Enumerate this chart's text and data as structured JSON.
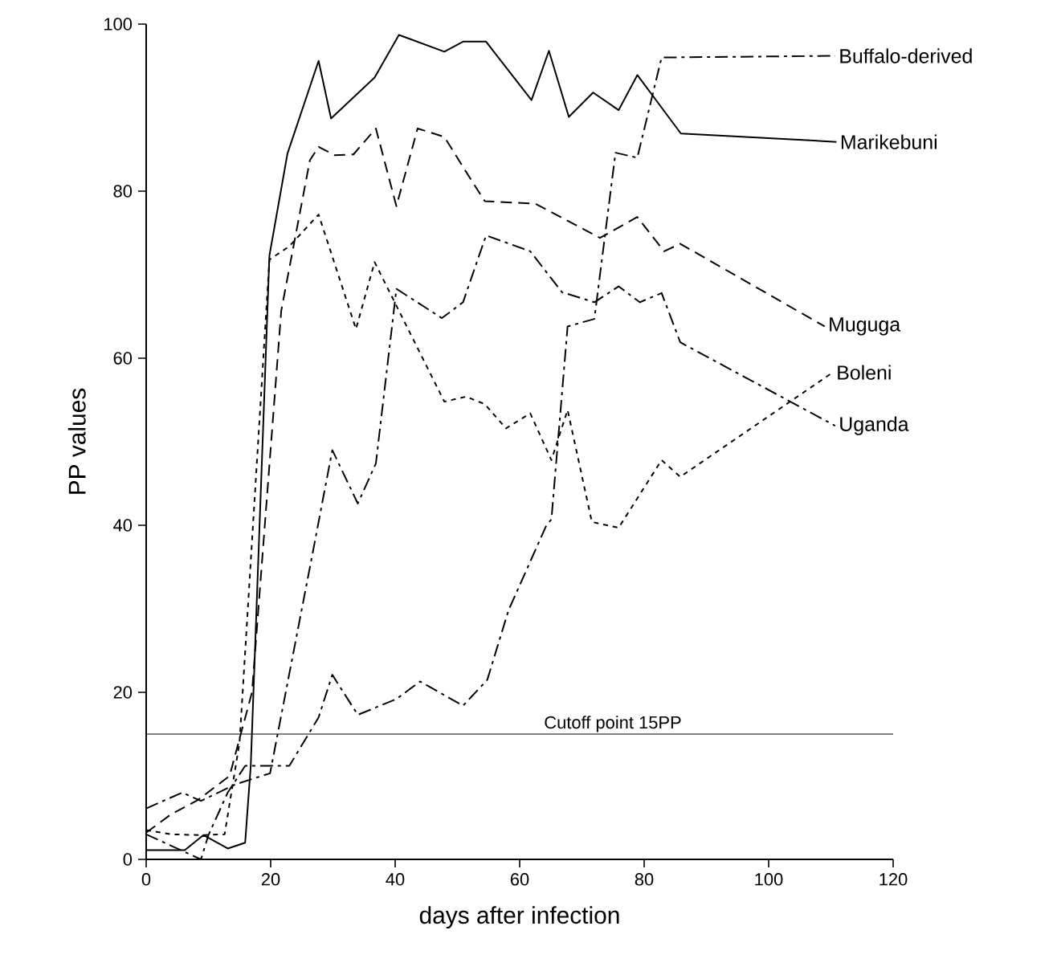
{
  "chart_data": {
    "type": "line",
    "xlabel": "days after infection",
    "ylabel": "PP values",
    "xlim": [
      0,
      120
    ],
    "ylim": [
      0,
      100
    ],
    "xticks": [
      0,
      20,
      40,
      60,
      80,
      100,
      120
    ],
    "yticks": [
      0,
      20,
      40,
      60,
      80,
      100
    ],
    "grid": false,
    "marker": "none",
    "ref_lines": [
      {
        "axis": "y",
        "value": 15,
        "label": "Cutoff point  15PP"
      }
    ],
    "series": [
      {
        "name": "Buffalo-derived",
        "color": "#000000",
        "line_style": "dashdot",
        "x": [
          0,
          8.8,
          10,
          13.1,
          15.9,
          23,
          27.7,
          29.9,
          34,
          40.2,
          44,
          50.9,
          54.8,
          58.2,
          64.3,
          65.1,
          67.7,
          72,
          75.4,
          78.9,
          82.8,
          110.7
        ],
        "values": [
          3,
          0,
          2.9,
          8,
          11.2,
          11.2,
          17,
          22.1,
          17.3,
          19.2,
          21.3,
          18.4,
          21.5,
          29.8,
          40,
          40.7,
          63.8,
          64.7,
          84.6,
          84,
          96,
          96.2
        ]
      },
      {
        "name": "Marikebuni",
        "color": "#000000",
        "line_style": "solid",
        "x": [
          0,
          6.2,
          9.2,
          13.1,
          15.9,
          16.8,
          19.8,
          22.7,
          27.7,
          29.7,
          36.7,
          40.6,
          47.9,
          50.9,
          54.6,
          61.9,
          64.7,
          67.9,
          71.8,
          75.9,
          78.9,
          85.9,
          110.9
        ],
        "values": [
          1.1,
          1.1,
          2.9,
          1.3,
          2,
          11.2,
          72.3,
          84.5,
          95.6,
          88.7,
          93.6,
          98.7,
          96.7,
          97.9,
          97.9,
          90.9,
          96.8,
          88.9,
          91.8,
          89.7,
          93.9,
          86.9,
          85.9
        ]
      },
      {
        "name": "Muguga",
        "color": "#000000",
        "line_style": "dashed",
        "x": [
          0,
          4,
          8.3,
          13.4,
          17,
          21.7,
          26.3,
          27.7,
          30.3,
          33.3,
          36.9,
          40.2,
          43.6,
          47.9,
          51.4,
          54.4,
          62.5,
          72.9,
          78.9,
          83.2,
          85.8,
          109
        ],
        "values": [
          3.2,
          5.4,
          7.1,
          10,
          20,
          65.7,
          83.7,
          85.3,
          84.3,
          84.4,
          87.5,
          78.2,
          87.5,
          86.5,
          82.3,
          78.8,
          78.5,
          74.4,
          76.9,
          72.8,
          73.7,
          63.8
        ]
      },
      {
        "name": "Boleni",
        "color": "#000000",
        "line_style": "dotted",
        "x": [
          0,
          4,
          8.8,
          12.6,
          15,
          19.8,
          23,
          27.7,
          33.7,
          36.7,
          47.9,
          51.4,
          54.4,
          57.8,
          61.7,
          65.1,
          67.7,
          71.6,
          75.9,
          82.8,
          85.8,
          110.3
        ],
        "values": [
          3.5,
          3,
          2.9,
          3,
          14,
          71.8,
          73.4,
          77.2,
          63.5,
          71.5,
          54.8,
          55.4,
          54.5,
          51.6,
          53.4,
          47.8,
          53.8,
          40.4,
          39.7,
          47.8,
          45.8,
          58.3
        ]
      },
      {
        "name": "Uganda",
        "color": "#000000",
        "line_style": "dashdot",
        "x": [
          0,
          5.8,
          8.8,
          14.4,
          19.9,
          26.8,
          29.9,
          34,
          36.9,
          40.2,
          47.5,
          50.9,
          54.6,
          61.7,
          66.8,
          72,
          75.9,
          79.3,
          82.8,
          85.8,
          110.7
        ],
        "values": [
          6.1,
          8,
          7,
          9,
          10.3,
          36.9,
          49,
          42.6,
          47.4,
          68.3,
          64.8,
          66.7,
          74.7,
          72.8,
          67.9,
          66.7,
          68.6,
          66.7,
          67.8,
          61.9,
          51.9
        ]
      }
    ]
  }
}
